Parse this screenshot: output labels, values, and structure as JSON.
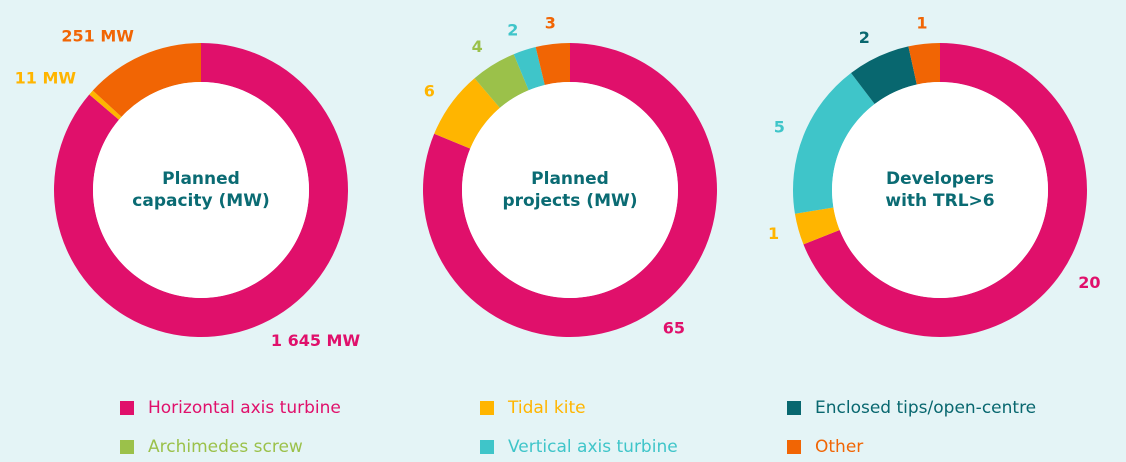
{
  "chart_data": [
    {
      "type": "donut",
      "title": "Planned capacity (MW)",
      "values": [
        1645,
        11,
        null,
        null,
        null,
        251
      ],
      "value_labels": [
        "1 645 MW",
        "11 MW",
        null,
        null,
        null,
        "251 MW"
      ]
    },
    {
      "type": "donut",
      "title": "Planned projects (MW)",
      "values": [
        65,
        6,
        null,
        4,
        2,
        3
      ]
    },
    {
      "type": "donut",
      "title": "Developers with TRL>6",
      "values": [
        20,
        1,
        2,
        null,
        5,
        1
      ]
    }
  ],
  "legend": {
    "items": [
      {
        "name": "Horizontal axis turbine",
        "color": "#e0106b"
      },
      {
        "name": "Tidal kite",
        "color": "#ffb500"
      },
      {
        "name": "Enclosed tips/open-centre",
        "color": "#08676f"
      },
      {
        "name": "Archimedes screw",
        "color": "#9bc14a"
      },
      {
        "name": "Vertical axis turbine",
        "color": "#3fc5c9"
      },
      {
        "name": "Other",
        "color": "#f16504"
      }
    ]
  }
}
